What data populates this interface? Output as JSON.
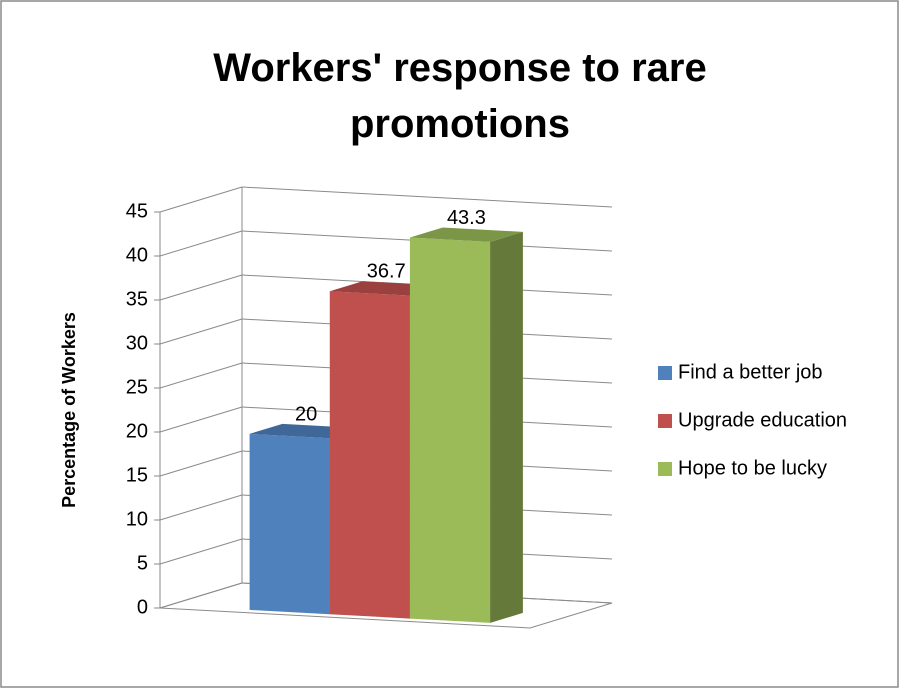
{
  "chart_data": {
    "type": "bar",
    "title": "Workers' response to rare promotions",
    "ylabel": "Percentage of Workers",
    "categories": [
      null
    ],
    "series": [
      {
        "name": "Find a better job",
        "color": "#4f81bd",
        "values": [
          20
        ]
      },
      {
        "name": "Upgrade education",
        "color": "#c0504d",
        "values": [
          36.7
        ]
      },
      {
        "name": "Hope to be lucky",
        "color": "#9bbb59",
        "values": [
          43.3
        ]
      }
    ],
    "ylim": [
      0,
      45
    ],
    "yticks": [
      0,
      5,
      10,
      15,
      20,
      25,
      30,
      35,
      40,
      45
    ],
    "grid": true,
    "legend": "right",
    "data_labels": true
  }
}
